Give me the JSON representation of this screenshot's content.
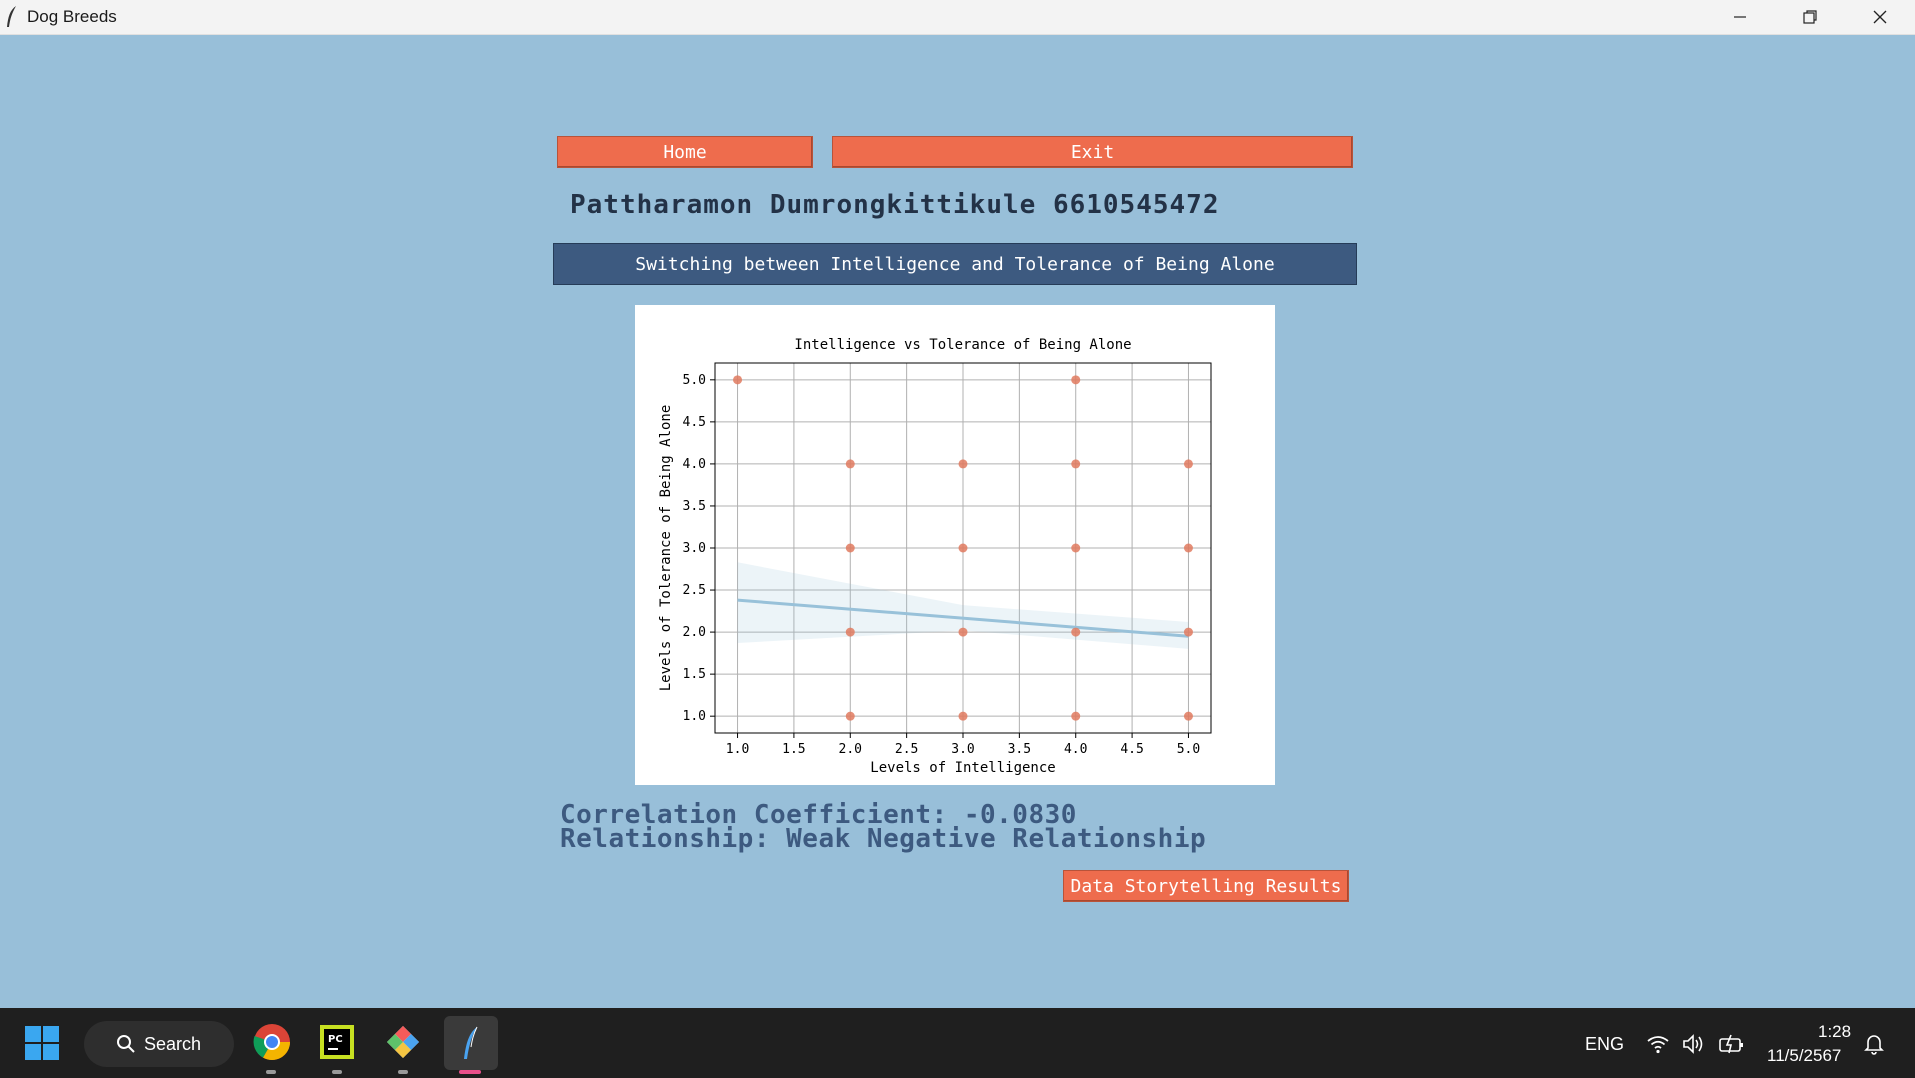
{
  "window": {
    "title": "Dog Breeds"
  },
  "nav": {
    "home_label": "Home",
    "exit_label": "Exit"
  },
  "student": {
    "name_id": "Pattharamon Dumrongkittikule 6610545472"
  },
  "switch_button": {
    "label": "Switching between Intelligence and Tolerance of Being Alone"
  },
  "results": {
    "correlation": "Correlation Coefficient: -0.0830",
    "relationship": "Relationship: Weak Negative Relationship"
  },
  "storytelling_button": {
    "label": "Data Storytelling Results"
  },
  "chart_data": {
    "type": "scatter",
    "title": "Intelligence vs Tolerance of Being Alone",
    "xlabel": "Levels of Intelligence",
    "ylabel": "Levels of Tolerance of Being Alone",
    "xlim": [
      0.8,
      5.2
    ],
    "ylim": [
      0.8,
      5.2
    ],
    "xticks": [
      "1.0",
      "1.5",
      "2.0",
      "2.5",
      "3.0",
      "3.5",
      "4.0",
      "4.5",
      "5.0"
    ],
    "yticks": [
      "1.0",
      "1.5",
      "2.0",
      "2.5",
      "3.0",
      "3.5",
      "4.0",
      "4.5",
      "5.0"
    ],
    "grid": true,
    "point_color": "#e07a5f",
    "trend_color": "#98c1d9",
    "points": [
      {
        "x": 1,
        "y": 5
      },
      {
        "x": 2,
        "y": 4
      },
      {
        "x": 2,
        "y": 3
      },
      {
        "x": 2,
        "y": 2
      },
      {
        "x": 2,
        "y": 1
      },
      {
        "x": 3,
        "y": 4
      },
      {
        "x": 3,
        "y": 3
      },
      {
        "x": 3,
        "y": 2
      },
      {
        "x": 3,
        "y": 1
      },
      {
        "x": 4,
        "y": 5
      },
      {
        "x": 4,
        "y": 4
      },
      {
        "x": 4,
        "y": 3
      },
      {
        "x": 4,
        "y": 2
      },
      {
        "x": 4,
        "y": 1
      },
      {
        "x": 5,
        "y": 4
      },
      {
        "x": 5,
        "y": 3
      },
      {
        "x": 5,
        "y": 2
      },
      {
        "x": 5,
        "y": 1
      }
    ],
    "trend_line": {
      "x": [
        1,
        5
      ],
      "y": [
        2.38,
        1.95
      ]
    },
    "confidence_band": {
      "upper": [
        {
          "x": 1,
          "y": 2.83
        },
        {
          "x": 3,
          "y": 2.32
        },
        {
          "x": 5,
          "y": 2.12
        }
      ],
      "lower": [
        {
          "x": 5,
          "y": 1.8
        },
        {
          "x": 3,
          "y": 2.02
        },
        {
          "x": 1,
          "y": 1.87
        }
      ]
    }
  },
  "taskbar": {
    "search_label": "Search",
    "language": "ENG",
    "time": "1:28",
    "date": "11/5/2567"
  }
}
